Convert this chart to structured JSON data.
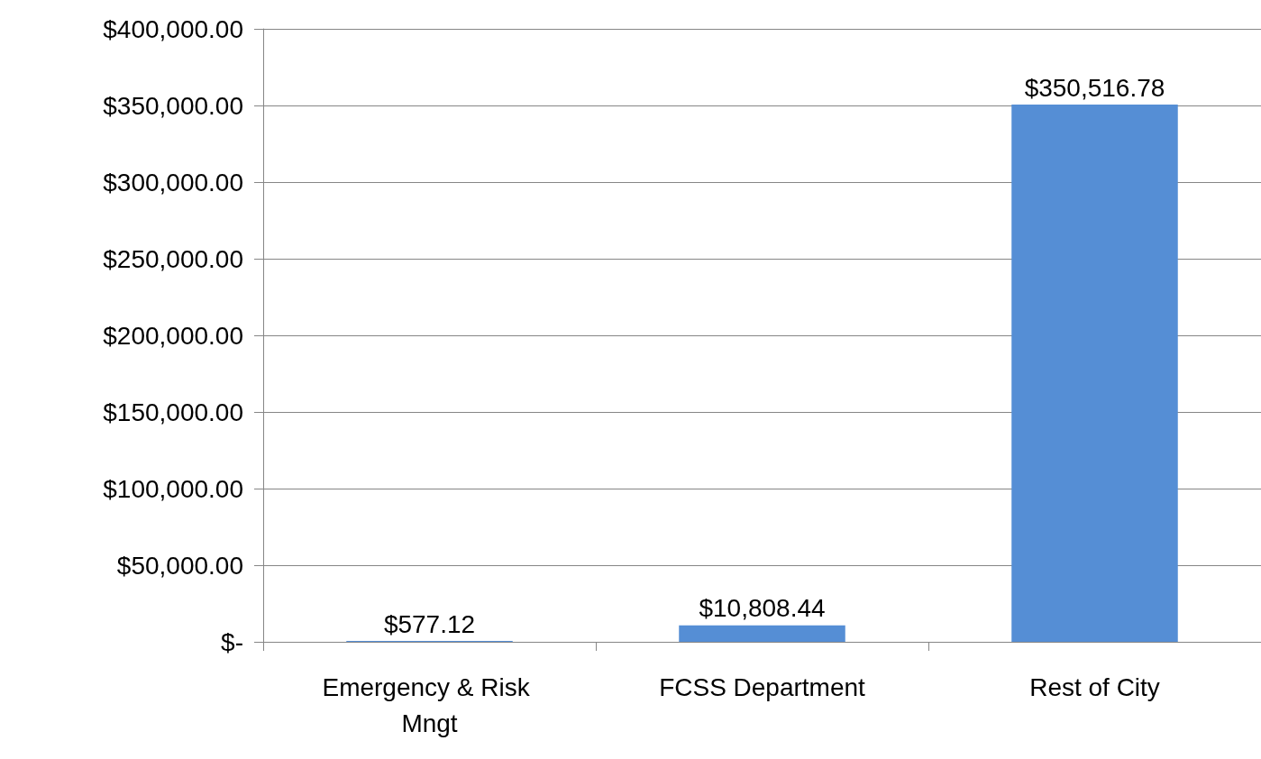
{
  "chart_data": {
    "type": "bar",
    "categories": [
      "Emergency & Risk Mngt",
      "FCSS Department",
      "Rest of City"
    ],
    "values": [
      577.12,
      10808.44,
      350516.78
    ],
    "value_labels": [
      "$577.12",
      "$10,808.44",
      "$350,516.78"
    ],
    "color": "#558ed5",
    "ylim": [
      0,
      400000
    ],
    "yticks": [
      {
        "value": 0,
        "label": "$-"
      },
      {
        "value": 50000,
        "label": "$50,000.00"
      },
      {
        "value": 100000,
        "label": "$100,000.00"
      },
      {
        "value": 150000,
        "label": "$150,000.00"
      },
      {
        "value": 200000,
        "label": "$200,000.00"
      },
      {
        "value": 250000,
        "label": "$250,000.00"
      },
      {
        "value": 300000,
        "label": "$300,000.00"
      },
      {
        "value": 350000,
        "label": "$350,000.00"
      },
      {
        "value": 400000,
        "label": "$400,000.00"
      }
    ],
    "grid": "y"
  }
}
